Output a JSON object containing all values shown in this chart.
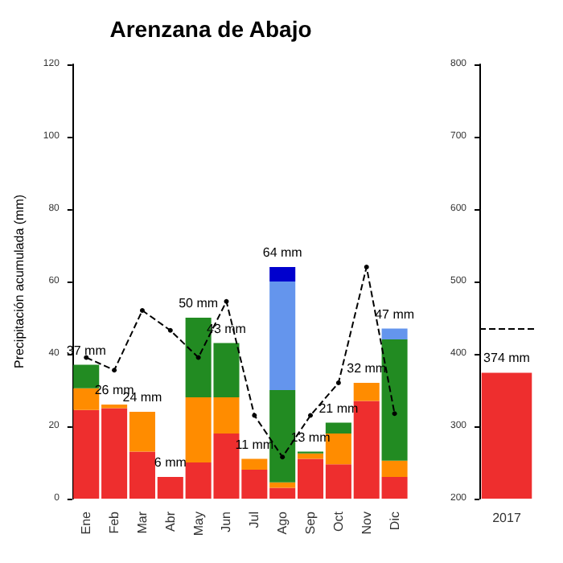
{
  "chart_data": [
    {
      "type": "bar",
      "title": "Arenzana de Abajo",
      "ylabel": "Precipitación acumulada (mm)",
      "stacked": true,
      "categories": [
        "Ene",
        "Feb",
        "Mar",
        "Abr",
        "May",
        "Jun",
        "Jul",
        "Ago",
        "Sep",
        "Oct",
        "Nov",
        "Dic"
      ],
      "ylim": [
        0,
        120
      ],
      "yticks": [
        0,
        20,
        40,
        60,
        80,
        100,
        120
      ],
      "series": [
        {
          "color": "#ee2e2e",
          "values": [
            24.5,
            25,
            13,
            6,
            10,
            18,
            8,
            3,
            11,
            9.5,
            27,
            6
          ]
        },
        {
          "color": "#ff8c00",
          "values": [
            6,
            1,
            11,
            0,
            18,
            10,
            3,
            1.5,
            1.5,
            8.5,
            5,
            4.5
          ]
        },
        {
          "color": "#228b22",
          "values": [
            6.5,
            0,
            0,
            0,
            22,
            15,
            0,
            25.5,
            0.5,
            3,
            0,
            33.5
          ]
        },
        {
          "color": "#6495ed",
          "values": [
            0,
            0,
            0,
            0,
            0,
            0,
            0,
            30,
            0,
            0,
            0,
            3
          ]
        },
        {
          "color": "#0000cd",
          "values": [
            0,
            0,
            0,
            0,
            0,
            0,
            0,
            4,
            0,
            0,
            0,
            0
          ]
        },
        {
          "type": "line",
          "color": "#000000",
          "line_style": "dashed",
          "marker": "circle",
          "values": [
            39,
            35.5,
            52,
            46.5,
            39,
            54.5,
            23,
            11.5,
            23,
            32,
            64,
            23.5
          ]
        }
      ],
      "totals": [
        "37 mm",
        "26 mm",
        "24 mm",
        "6 mm",
        "50 mm",
        "43 mm",
        "11 mm",
        "64 mm",
        "13 mm",
        "21 mm",
        "32 mm",
        "47 mm"
      ]
    },
    {
      "type": "bar",
      "categories": [
        "2017"
      ],
      "ylim": [
        200,
        800
      ],
      "yticks": [
        200,
        300,
        400,
        500,
        600,
        700,
        800
      ],
      "series": [
        {
          "color": "#ee2e2e",
          "values": [
            374
          ],
          "value_labels": [
            "374 mm"
          ]
        }
      ],
      "ref_lines": [
        {
          "axis": "y",
          "value": 436,
          "color": "#000000",
          "line_style": "dashed"
        }
      ]
    }
  ]
}
